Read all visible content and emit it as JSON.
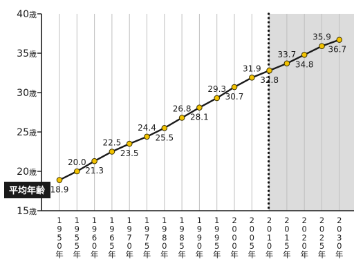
{
  "chart_data": {
    "type": "line",
    "ylabel": "平均年齢",
    "ylim": [
      15,
      40
    ],
    "y_ticks": [
      {
        "value": 15,
        "label": "15歳"
      },
      {
        "value": 20,
        "label": "20歳"
      },
      {
        "value": 25,
        "label": "25歳"
      },
      {
        "value": 30,
        "label": "30歳"
      },
      {
        "value": 35,
        "label": "35歳"
      },
      {
        "value": 40,
        "label": "40歳"
      }
    ],
    "categories": [
      "1950年",
      "1955年",
      "1960年",
      "1965年",
      "1970年",
      "1975年",
      "1980年",
      "1985年",
      "1990年",
      "1995年",
      "2000年",
      "2005年",
      "2010年",
      "2015年",
      "2020年",
      "2025年",
      "2030年"
    ],
    "values": [
      18.9,
      20.0,
      21.3,
      22.5,
      23.5,
      24.4,
      25.5,
      26.8,
      28.1,
      29.3,
      30.7,
      31.9,
      32.8,
      33.7,
      34.8,
      35.9,
      36.7
    ],
    "value_labels": [
      "18.9",
      "20.0",
      "21.3",
      "22.5",
      "23.5",
      "24.4",
      "25.5",
      "26.8",
      "28.1",
      "29.3",
      "30.7",
      "31.9",
      "32.8",
      "33.7",
      "34.8",
      "35.9",
      "36.7"
    ],
    "projection_start": "2010年",
    "grid": true,
    "colors": {
      "line": "#1a1a1a",
      "marker": "#f2c200",
      "marker_edge": "#3a3000",
      "projection_shade": "#dcdcdc",
      "grid": "#bfbfbf",
      "ylabel_bg": "#1a1a1a",
      "ylabel_text": "#ffffff"
    }
  }
}
